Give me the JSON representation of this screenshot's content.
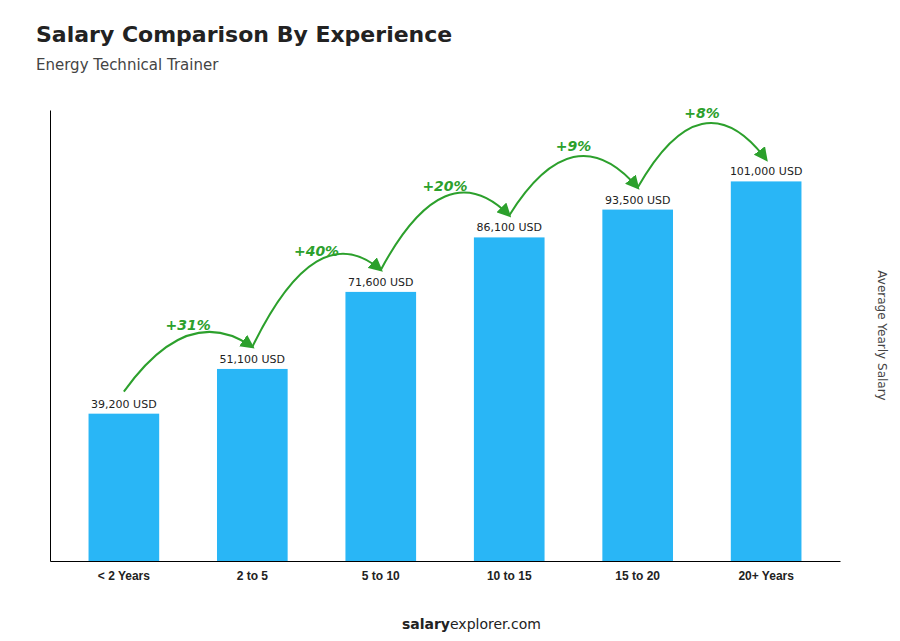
{
  "chart_data": {
    "type": "bar",
    "title": "Salary Comparison By Experience",
    "subtitle": "Energy Technical Trainer",
    "categories": [
      "< 2 Years",
      "2 to 5",
      "5 to 10",
      "10 to 15",
      "15 to 20",
      "20+ Years"
    ],
    "values": [
      39200,
      51100,
      71600,
      86100,
      93500,
      101000
    ],
    "value_labels": [
      "39,200 USD",
      "51,100 USD",
      "71,600 USD",
      "86,100 USD",
      "93,500 USD",
      "101,000 USD"
    ],
    "data_labels": true,
    "annotations": [
      "+31%",
      "+40%",
      "+20%",
      "+9%",
      "+8%"
    ],
    "ylabel": "Average Yearly Salary",
    "footer": [
      "salary",
      "explorer.com"
    ],
    "color": "#29B6F6",
    "ylim": [
      0,
      120000
    ],
    "tick_labels": "x",
    "grid": false
  }
}
